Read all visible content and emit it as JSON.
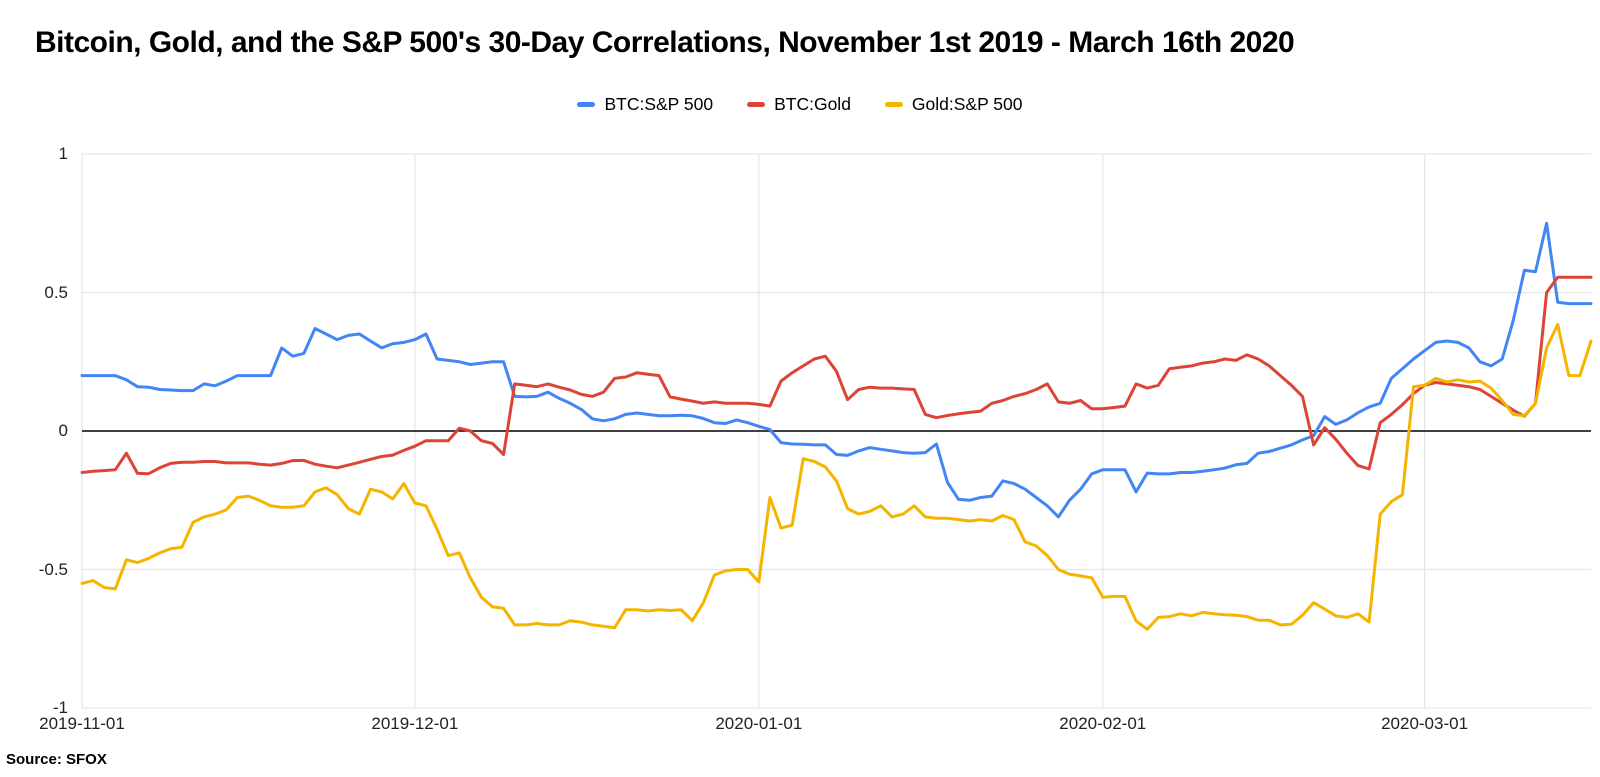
{
  "title": "Bitcoin, Gold, and the S&P 500's 30-Day Correlations, November 1st 2019 - March 16th 2020",
  "source": "Source: SFOX",
  "chart_data": {
    "type": "line",
    "title": "Bitcoin, Gold, and the S&P 500's 30-Day Correlations, November 1st 2019 - March 16th 2020",
    "x_start": "2019-11-01",
    "x_end": "2020-03-16",
    "frequency": "daily",
    "grid": true,
    "legend_position": "top-center",
    "ylim": [
      -1,
      1
    ],
    "y_tick_labels": [
      "1",
      "0.5",
      "0",
      "-0.5",
      "-1"
    ],
    "y_tick_values": [
      1,
      0.5,
      0,
      -0.5,
      -1
    ],
    "zero_line_color": "#000000",
    "gridline_color": "#e6e6e6",
    "x_tick_labels": [
      "2019-11-01",
      "2019-12-01",
      "2020-01-01",
      "2020-02-01",
      "2020-03-01"
    ],
    "x_tick_indices": [
      0,
      30,
      61,
      92,
      121
    ],
    "series": [
      {
        "name": "BTC:S&P 500",
        "color": "#4285F4",
        "values": [
          0.2,
          0.2,
          0.2,
          0.2,
          0.185,
          0.16,
          0.158,
          0.15,
          0.148,
          0.146,
          0.146,
          0.17,
          0.163,
          0.18,
          0.2,
          0.2,
          0.2,
          0.2,
          0.3,
          0.27,
          0.28,
          0.37,
          0.35,
          0.33,
          0.345,
          0.35,
          0.325,
          0.3,
          0.315,
          0.32,
          0.33,
          0.35,
          0.26,
          0.255,
          0.25,
          0.24,
          0.245,
          0.25,
          0.25,
          0.125,
          0.123,
          0.125,
          0.14,
          0.118,
          0.1,
          0.078,
          0.044,
          0.037,
          0.044,
          0.06,
          0.065,
          0.06,
          0.055,
          0.055,
          0.057,
          0.055,
          0.045,
          0.03,
          0.027,
          0.04,
          0.03,
          0.017,
          0.005,
          -0.042,
          -0.047,
          -0.048,
          -0.05,
          -0.05,
          -0.085,
          -0.088,
          -0.072,
          -0.06,
          -0.066,
          -0.072,
          -0.078,
          -0.08,
          -0.078,
          -0.047,
          -0.186,
          -0.247,
          -0.25,
          -0.24,
          -0.235,
          -0.18,
          -0.19,
          -0.21,
          -0.24,
          -0.27,
          -0.31,
          -0.25,
          -0.21,
          -0.155,
          -0.14,
          -0.14,
          -0.14,
          -0.22,
          -0.152,
          -0.155,
          -0.155,
          -0.15,
          -0.15,
          -0.145,
          -0.14,
          -0.134,
          -0.122,
          -0.117,
          -0.08,
          -0.074,
          -0.062,
          -0.05,
          -0.032,
          -0.017,
          0.052,
          0.024,
          0.04,
          0.066,
          0.087,
          0.1,
          0.19,
          0.225,
          0.26,
          0.29,
          0.32,
          0.325,
          0.32,
          0.3,
          0.25,
          0.235,
          0.26,
          0.4,
          0.58,
          0.575,
          0.75,
          0.465,
          0.46,
          0.46,
          0.46
        ]
      },
      {
        "name": "BTC:Gold",
        "color": "#DB4437",
        "values": [
          -0.15,
          -0.145,
          -0.143,
          -0.14,
          -0.08,
          -0.153,
          -0.154,
          -0.133,
          -0.117,
          -0.113,
          -0.113,
          -0.11,
          -0.11,
          -0.115,
          -0.115,
          -0.115,
          -0.12,
          -0.123,
          -0.117,
          -0.107,
          -0.106,
          -0.12,
          -0.127,
          -0.133,
          -0.123,
          -0.113,
          -0.102,
          -0.092,
          -0.087,
          -0.07,
          -0.055,
          -0.035,
          -0.035,
          -0.035,
          0.01,
          0.0,
          -0.035,
          -0.045,
          -0.085,
          0.17,
          0.165,
          0.16,
          0.17,
          0.158,
          0.148,
          0.132,
          0.125,
          0.14,
          0.19,
          0.195,
          0.21,
          0.205,
          0.2,
          0.123,
          0.115,
          0.108,
          0.1,
          0.105,
          0.1,
          0.1,
          0.1,
          0.096,
          0.09,
          0.18,
          0.21,
          0.235,
          0.26,
          0.27,
          0.215,
          0.113,
          0.15,
          0.158,
          0.155,
          0.155,
          0.152,
          0.15,
          0.06,
          0.048,
          0.056,
          0.062,
          0.067,
          0.072,
          0.1,
          0.11,
          0.125,
          0.135,
          0.15,
          0.17,
          0.105,
          0.1,
          0.11,
          0.08,
          0.08,
          0.085,
          0.09,
          0.17,
          0.155,
          0.165,
          0.225,
          0.23,
          0.235,
          0.245,
          0.25,
          0.26,
          0.255,
          0.275,
          0.26,
          0.235,
          0.2,
          0.165,
          0.125,
          -0.05,
          0.012,
          -0.03,
          -0.08,
          -0.125,
          -0.137,
          0.03,
          0.06,
          0.095,
          0.135,
          0.165,
          0.175,
          0.17,
          0.165,
          0.16,
          0.15,
          0.125,
          0.1,
          0.075,
          0.053,
          0.1,
          0.5,
          0.555,
          0.555,
          0.555,
          0.555
        ]
      },
      {
        "name": "Gold:S&P 500",
        "color": "#F4B400",
        "values": [
          -0.55,
          -0.54,
          -0.565,
          -0.57,
          -0.465,
          -0.475,
          -0.46,
          -0.44,
          -0.425,
          -0.42,
          -0.33,
          -0.31,
          -0.3,
          -0.285,
          -0.24,
          -0.235,
          -0.25,
          -0.27,
          -0.275,
          -0.275,
          -0.27,
          -0.22,
          -0.205,
          -0.23,
          -0.28,
          -0.3,
          -0.21,
          -0.22,
          -0.245,
          -0.19,
          -0.26,
          -0.27,
          -0.355,
          -0.45,
          -0.44,
          -0.53,
          -0.6,
          -0.635,
          -0.64,
          -0.7,
          -0.7,
          -0.695,
          -0.7,
          -0.7,
          -0.685,
          -0.69,
          -0.7,
          -0.705,
          -0.71,
          -0.645,
          -0.645,
          -0.65,
          -0.645,
          -0.648,
          -0.645,
          -0.685,
          -0.62,
          -0.52,
          -0.505,
          -0.5,
          -0.5,
          -0.545,
          -0.24,
          -0.35,
          -0.34,
          -0.1,
          -0.11,
          -0.13,
          -0.18,
          -0.28,
          -0.3,
          -0.29,
          -0.27,
          -0.31,
          -0.3,
          -0.27,
          -0.31,
          -0.315,
          -0.315,
          -0.32,
          -0.325,
          -0.32,
          -0.325,
          -0.305,
          -0.32,
          -0.4,
          -0.415,
          -0.45,
          -0.5,
          -0.517,
          -0.523,
          -0.53,
          -0.6,
          -0.597,
          -0.597,
          -0.686,
          -0.716,
          -0.673,
          -0.67,
          -0.66,
          -0.667,
          -0.655,
          -0.66,
          -0.663,
          -0.665,
          -0.67,
          -0.683,
          -0.683,
          -0.7,
          -0.698,
          -0.665,
          -0.62,
          -0.643,
          -0.667,
          -0.673,
          -0.66,
          -0.69,
          -0.3,
          -0.255,
          -0.23,
          0.16,
          0.165,
          0.19,
          0.177,
          0.185,
          0.177,
          0.18,
          0.155,
          0.11,
          0.06,
          0.055,
          0.1,
          0.3,
          0.385,
          0.2,
          0.2,
          0.325
        ]
      }
    ]
  }
}
